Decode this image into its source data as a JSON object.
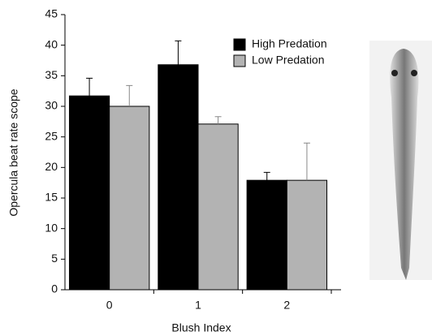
{
  "chart_data": {
    "type": "bar",
    "xlabel": "Blush Index",
    "ylabel": "Opercula beat rate scope",
    "categories": [
      "0",
      "1",
      "2"
    ],
    "series": [
      {
        "name": "High Predation",
        "color": "#000000",
        "values": [
          31.7,
          36.8,
          17.9
        ],
        "errors": [
          2.9,
          3.9,
          1.3
        ]
      },
      {
        "name": "Low Predation",
        "color": "#b3b3b3",
        "values": [
          30.0,
          27.1,
          17.9
        ],
        "errors": [
          3.4,
          1.2,
          6.1
        ]
      }
    ],
    "ylim": [
      0,
      45
    ],
    "yticks": [
      0,
      5,
      10,
      15,
      20,
      25,
      30,
      35,
      40,
      45
    ],
    "legend": "upper right"
  }
}
